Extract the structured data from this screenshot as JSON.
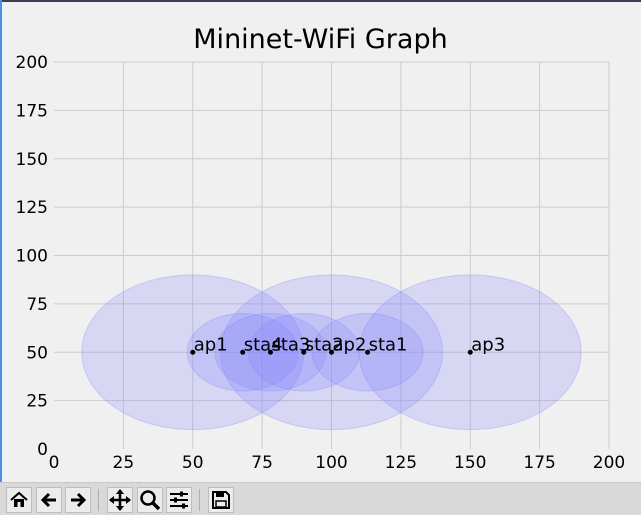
{
  "window": {
    "title": "Mininet-WiFi Graph"
  },
  "toolbar": {
    "buttons": [
      {
        "name": "home-button",
        "icon": "home-icon"
      },
      {
        "name": "back-button",
        "icon": "arrow-left-icon"
      },
      {
        "name": "forward-button",
        "icon": "arrow-right-icon"
      },
      {
        "name": "pan-button",
        "icon": "move-icon"
      },
      {
        "name": "zoom-button",
        "icon": "magnifier-icon"
      },
      {
        "name": "configure-subplots-button",
        "icon": "sliders-icon"
      },
      {
        "name": "save-button",
        "icon": "floppy-disk-icon"
      }
    ]
  },
  "chart_data": {
    "type": "scatter",
    "title": "Mininet-WiFi Graph",
    "xlabel": "",
    "ylabel": "",
    "xlim": [
      0,
      200
    ],
    "ylim": [
      0,
      200
    ],
    "xticks": [
      "0",
      "25",
      "50",
      "75",
      "100",
      "125",
      "150",
      "175",
      "200"
    ],
    "yticks": [
      "0",
      "25",
      "50",
      "75",
      "100",
      "125",
      "150",
      "175",
      "200"
    ],
    "grid": true,
    "node_color": "#000000",
    "range_color": "#8080ff",
    "nodes": [
      {
        "label": "ap1",
        "x": 50,
        "y": 50,
        "range": 40
      },
      {
        "label": "sta4",
        "x": 68,
        "y": 50,
        "range": 20
      },
      {
        "label": "sta3",
        "x": 78,
        "y": 50,
        "range": 20
      },
      {
        "label": "sta2",
        "x": 90,
        "y": 50,
        "range": 20
      },
      {
        "label": "ap2",
        "x": 100,
        "y": 50,
        "range": 40
      },
      {
        "label": "sta1",
        "x": 113,
        "y": 50,
        "range": 20
      },
      {
        "label": "ap3",
        "x": 150,
        "y": 50,
        "range": 40
      }
    ]
  }
}
